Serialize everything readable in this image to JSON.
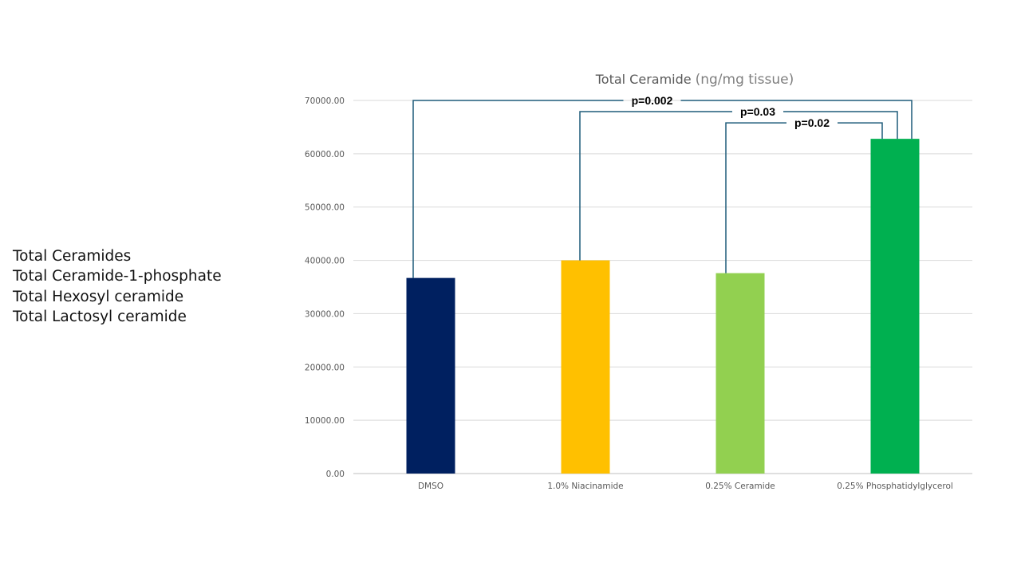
{
  "side_list": {
    "items": [
      "Total Ceramides",
      "Total Ceramide-1-phosphate",
      "Total Hexosyl ceramide",
      "Total Lactosyl ceramide"
    ]
  },
  "chart_data": {
    "type": "bar",
    "title": "Total Ceramide",
    "title_unit": "(ng/mg tissue)",
    "xlabel": "",
    "ylabel": "",
    "categories": [
      "DMSO",
      "1.0% Niacinamide",
      "0.25% Ceramide",
      "0.25% Phosphatidylglycerol"
    ],
    "values": [
      36700,
      40000,
      37600,
      62800
    ],
    "bar_colors": [
      "#002060",
      "#ffc000",
      "#92d050",
      "#00b050"
    ],
    "ylim": [
      0,
      70000
    ],
    "yticks": [
      "0.00",
      "10000.00",
      "20000.00",
      "30000.00",
      "40000.00",
      "50000.00",
      "60000.00",
      "70000.00"
    ],
    "grid": true,
    "bracket_color": "#1f5c7a",
    "annotations": [
      {
        "text": "p=0.002",
        "from": 0,
        "to": 3,
        "level": 70000
      },
      {
        "text": "p=0.03",
        "from": 1,
        "to": 3,
        "level": 67900
      },
      {
        "text": "p=0.02",
        "from": 2,
        "to": 3,
        "level": 65800
      }
    ]
  }
}
